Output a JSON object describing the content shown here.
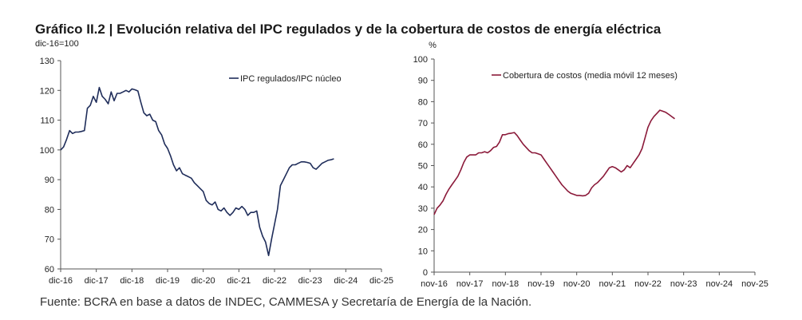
{
  "title": "Gráfico II.2 | Evolución relativa del IPC regulados y de la cobertura de costos de energía eléctrica",
  "source": "Fuente: BCRA en base a datos de INDEC, CAMMESA y Secretaría de Energía de la Nación.",
  "chart_data": [
    {
      "type": "line",
      "unit_label": "dic-16=100",
      "ylim": [
        60,
        130
      ],
      "yticks": [
        "60",
        "70",
        "80",
        "90",
        "100",
        "110",
        "120",
        "130"
      ],
      "xlim": [
        0,
        108
      ],
      "xticks": [
        {
          "label": "dic-16",
          "x": 0
        },
        {
          "label": "dic-17",
          "x": 12
        },
        {
          "label": "dic-18",
          "x": 24
        },
        {
          "label": "dic-19",
          "x": 36
        },
        {
          "label": "dic-20",
          "x": 48
        },
        {
          "label": "dic-21",
          "x": 60
        },
        {
          "label": "dic-22",
          "x": 72
        },
        {
          "label": "dic-23",
          "x": 84
        },
        {
          "label": "dic-24",
          "x": 96
        },
        {
          "label": "dic-25",
          "x": 108
        }
      ],
      "series": [
        {
          "name": "IPC regulados/IPC núcleo",
          "color": "#1f2d5a",
          "points": [
            [
              0,
              100
            ],
            [
              1,
              101
            ],
            [
              2,
              103.5
            ],
            [
              3,
              106.5
            ],
            [
              4,
              105.5
            ],
            [
              5,
              106
            ],
            [
              6,
              106
            ],
            [
              7,
              106.2
            ],
            [
              8,
              106.5
            ],
            [
              9,
              114
            ],
            [
              10,
              115
            ],
            [
              11,
              118
            ],
            [
              12,
              116
            ],
            [
              13,
              121
            ],
            [
              14,
              118
            ],
            [
              15,
              117
            ],
            [
              16,
              115.5
            ],
            [
              17,
              119.5
            ],
            [
              18,
              116.5
            ],
            [
              19,
              119
            ],
            [
              20,
              119
            ],
            [
              21,
              119.5
            ],
            [
              22,
              120
            ],
            [
              23,
              119.5
            ],
            [
              24,
              120.5
            ],
            [
              25,
              120.2
            ],
            [
              26,
              119.8
            ],
            [
              27,
              116
            ],
            [
              28,
              112.5
            ],
            [
              29,
              111.5
            ],
            [
              30,
              112
            ],
            [
              31,
              110
            ],
            [
              32,
              109.5
            ],
            [
              33,
              106.5
            ],
            [
              34,
              105
            ],
            [
              35,
              102
            ],
            [
              36,
              100.5
            ],
            [
              37,
              98
            ],
            [
              38,
              95
            ],
            [
              39,
              93
            ],
            [
              40,
              94
            ],
            [
              41,
              92
            ],
            [
              42,
              91.5
            ],
            [
              43,
              91
            ],
            [
              44,
              90.5
            ],
            [
              45,
              89
            ],
            [
              46,
              88
            ],
            [
              47,
              87
            ],
            [
              48,
              86
            ],
            [
              49,
              83
            ],
            [
              50,
              82
            ],
            [
              51,
              81.5
            ],
            [
              52,
              82.5
            ],
            [
              53,
              80
            ],
            [
              54,
              79.5
            ],
            [
              55,
              80.5
            ],
            [
              56,
              79
            ],
            [
              57,
              78
            ],
            [
              58,
              79
            ],
            [
              59,
              80.5
            ],
            [
              60,
              80
            ],
            [
              61,
              81
            ],
            [
              62,
              80
            ],
            [
              63,
              78
            ],
            [
              64,
              79
            ],
            [
              65,
              79
            ],
            [
              66,
              79.5
            ],
            [
              67,
              74
            ],
            [
              68,
              71
            ],
            [
              69,
              69
            ],
            [
              70,
              64.5
            ],
            [
              71,
              70
            ],
            [
              72,
              75
            ],
            [
              73,
              80
            ],
            [
              74,
              88
            ],
            [
              75,
              90
            ],
            [
              76,
              92
            ],
            [
              77,
              94
            ],
            [
              78,
              95
            ],
            [
              79,
              95
            ],
            [
              80,
              95.5
            ],
            [
              81,
              96
            ],
            [
              82,
              96
            ],
            [
              83,
              95.8
            ],
            [
              84,
              95.5
            ],
            [
              85,
              94
            ],
            [
              86,
              93.5
            ],
            [
              87,
              94.5
            ],
            [
              88,
              95.5
            ],
            [
              89,
              96
            ],
            [
              90,
              96.5
            ],
            [
              91,
              96.7
            ],
            [
              92,
              97
            ]
          ]
        }
      ]
    },
    {
      "type": "line",
      "unit_label": "%",
      "ylim": [
        0,
        100
      ],
      "yticks": [
        "0",
        "10",
        "20",
        "30",
        "40",
        "50",
        "60",
        "70",
        "80",
        "90",
        "100"
      ],
      "xlim": [
        0,
        108
      ],
      "xticks": [
        {
          "label": "nov-16",
          "x": 0
        },
        {
          "label": "nov-17",
          "x": 12
        },
        {
          "label": "nov-18",
          "x": 24
        },
        {
          "label": "nov-19",
          "x": 36
        },
        {
          "label": "nov-20",
          "x": 48
        },
        {
          "label": "nov-21",
          "x": 60
        },
        {
          "label": "nov-22",
          "x": 72
        },
        {
          "label": "nov-23",
          "x": 84
        },
        {
          "label": "nov-24",
          "x": 96
        },
        {
          "label": "nov-25",
          "x": 108
        }
      ],
      "series": [
        {
          "name": "Cobertura de costos (media móvil 12 meses)",
          "color": "#8b1a3a",
          "points": [
            [
              0,
              27
            ],
            [
              1,
              30
            ],
            [
              2,
              31.5
            ],
            [
              3,
              33.5
            ],
            [
              4,
              36.5
            ],
            [
              5,
              39
            ],
            [
              6,
              41
            ],
            [
              7,
              43
            ],
            [
              8,
              45
            ],
            [
              9,
              48
            ],
            [
              10,
              51.5
            ],
            [
              11,
              54
            ],
            [
              12,
              55
            ],
            [
              13,
              55
            ],
            [
              14,
              55
            ],
            [
              15,
              56
            ],
            [
              16,
              56
            ],
            [
              17,
              56.5
            ],
            [
              18,
              56
            ],
            [
              19,
              57
            ],
            [
              20,
              58.5
            ],
            [
              21,
              59
            ],
            [
              22,
              61
            ],
            [
              23,
              64.5
            ],
            [
              24,
              64.5
            ],
            [
              25,
              65
            ],
            [
              26,
              65.2
            ],
            [
              27,
              65.5
            ],
            [
              28,
              64
            ],
            [
              29,
              62
            ],
            [
              30,
              60
            ],
            [
              31,
              58.5
            ],
            [
              32,
              57
            ],
            [
              33,
              56
            ],
            [
              34,
              56
            ],
            [
              35,
              55.5
            ],
            [
              36,
              55
            ],
            [
              37,
              53
            ],
            [
              38,
              51
            ],
            [
              39,
              49
            ],
            [
              40,
              47
            ],
            [
              41,
              45
            ],
            [
              42,
              43
            ],
            [
              43,
              41
            ],
            [
              44,
              39.5
            ],
            [
              45,
              38
            ],
            [
              46,
              37
            ],
            [
              47,
              36.5
            ],
            [
              48,
              36
            ],
            [
              49,
              36
            ],
            [
              50,
              35.8
            ],
            [
              51,
              36
            ],
            [
              52,
              37
            ],
            [
              53,
              39.5
            ],
            [
              54,
              41
            ],
            [
              55,
              42
            ],
            [
              56,
              43.5
            ],
            [
              57,
              45
            ],
            [
              58,
              47
            ],
            [
              59,
              49
            ],
            [
              60,
              49.5
            ],
            [
              61,
              49
            ],
            [
              62,
              48
            ],
            [
              63,
              47
            ],
            [
              64,
              48
            ],
            [
              65,
              50
            ],
            [
              66,
              49
            ],
            [
              67,
              51
            ],
            [
              68,
              53
            ],
            [
              69,
              55
            ],
            [
              70,
              58
            ],
            [
              71,
              63
            ],
            [
              72,
              68
            ],
            [
              73,
              71
            ],
            [
              74,
              73
            ],
            [
              75,
              74.5
            ],
            [
              76,
              76
            ],
            [
              77,
              75.5
            ],
            [
              78,
              75
            ],
            [
              79,
              74
            ],
            [
              80,
              73
            ],
            [
              81,
              72
            ]
          ]
        }
      ]
    }
  ]
}
